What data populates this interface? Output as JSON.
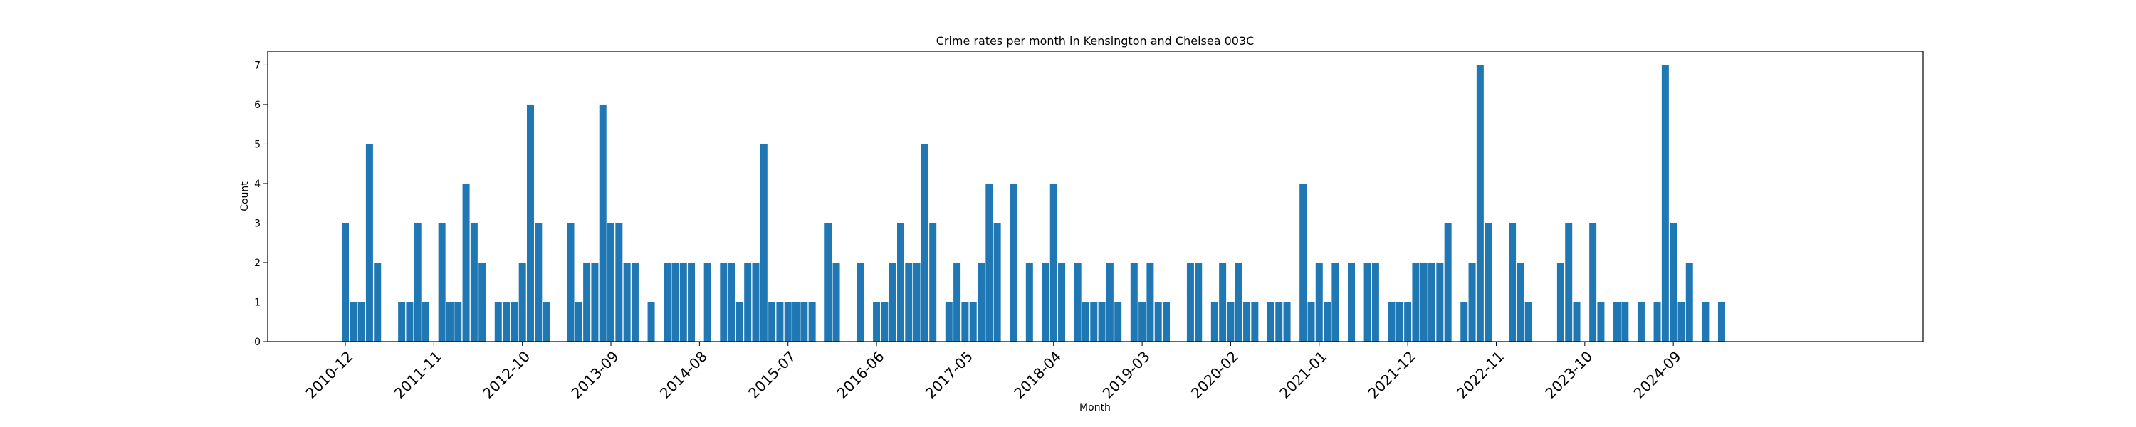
{
  "chart_data": {
    "type": "bar",
    "title": "Crime rates per month in Kensington and Chelsea 003C",
    "xlabel": "Month",
    "ylabel": "Count",
    "ylim": [
      0,
      7.35
    ],
    "yticks": [
      0,
      1,
      2,
      3,
      4,
      5,
      6,
      7
    ],
    "xtick_labels": [
      "2010-12",
      "2011-11",
      "2012-10",
      "2013-09",
      "2014-08",
      "2015-07",
      "2016-06",
      "2017-05",
      "2018-04",
      "2019-03",
      "2020-02",
      "2021-01",
      "2021-12",
      "2022-11",
      "2023-10",
      "2024-09"
    ],
    "grid": false,
    "bar_color": "#1f77b4",
    "first_month": "2010-12",
    "values": [
      3,
      1,
      1,
      5,
      2,
      0,
      0,
      1,
      1,
      3,
      1,
      0,
      3,
      1,
      1,
      4,
      3,
      2,
      0,
      1,
      1,
      1,
      2,
      6,
      3,
      1,
      0,
      0,
      3,
      1,
      2,
      2,
      6,
      3,
      3,
      2,
      2,
      0,
      1,
      0,
      2,
      2,
      2,
      2,
      0,
      2,
      0,
      2,
      2,
      1,
      2,
      2,
      5,
      1,
      1,
      1,
      1,
      1,
      1,
      0,
      3,
      2,
      0,
      0,
      2,
      0,
      1,
      1,
      2,
      3,
      2,
      2,
      5,
      3,
      0,
      1,
      2,
      1,
      1,
      2,
      4,
      3,
      0,
      4,
      0,
      2,
      0,
      2,
      4,
      2,
      0,
      2,
      1,
      1,
      1,
      2,
      1,
      0,
      2,
      1,
      2,
      1,
      1,
      0,
      0,
      2,
      2,
      0,
      1,
      2,
      1,
      2,
      1,
      1,
      0,
      1,
      1,
      1,
      0,
      4,
      1,
      2,
      1,
      2,
      0,
      2,
      0,
      2,
      2,
      0,
      1,
      1,
      1,
      2,
      2,
      2,
      2,
      3,
      0,
      1,
      2,
      7,
      3,
      0,
      0,
      3,
      2,
      1,
      0,
      0,
      0,
      2,
      3,
      1,
      0,
      3,
      1,
      0,
      1,
      1,
      0,
      1,
      0,
      1,
      7,
      3,
      1,
      2,
      0,
      1,
      0,
      1
    ]
  }
}
